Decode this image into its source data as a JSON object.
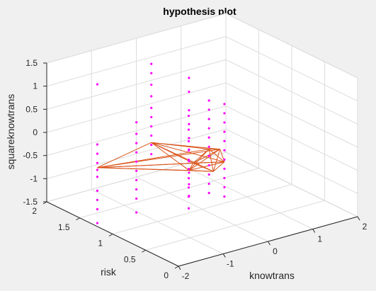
{
  "chart_data": {
    "type": "scatter",
    "title": "hypothesis plot",
    "xlabel": "knowtrans",
    "ylabel": "risk",
    "zlabel": "squareknowtrans",
    "xlim": [
      -2,
      2
    ],
    "ylim": [
      0,
      2
    ],
    "zlim": [
      -1.5,
      1.5
    ],
    "xticks": [
      "-2",
      "-1",
      "0",
      "1",
      "2"
    ],
    "yticks": [
      "0",
      "0.5",
      "1",
      "1.5",
      "2"
    ],
    "zticks": [
      "-1.5",
      "-1",
      "-0.5",
      "0",
      "0.5",
      "1",
      "1.5"
    ],
    "grid": true,
    "legend": "none",
    "colors": {
      "points": "#ff00ff",
      "lines": "#d95319",
      "background": "#f0f0f0",
      "axes": "#ffffff",
      "grid": "#dcdcdc"
    },
    "series": [
      {
        "kind": "points",
        "groups": [
          {
            "x": -1.9,
            "y": 1.3,
            "z": [
              1.5,
              0.2,
              0.0,
              -0.2,
              -0.35,
              -0.5,
              -0.8,
              -1.0,
              -1.2,
              -1.5
            ]
          },
          {
            "x": -1.1,
            "y": 1.25,
            "z": [
              0.5,
              0.25,
              0.05,
              -0.15,
              -0.35,
              -0.55,
              -0.75,
              -0.95,
              -1.15,
              -1.45
            ]
          },
          {
            "x": -0.4,
            "y": 1.5,
            "z": [
              1.4,
              1.2,
              0.95,
              0.7,
              0.45,
              0.25,
              0.05,
              -0.15,
              -0.35,
              -0.55
            ]
          },
          {
            "x": -0.3,
            "y": 1.0,
            "z": [
              0.6,
              0.3,
              0.05,
              -0.15,
              -0.35,
              -0.55,
              -0.75,
              -0.95,
              -1.15,
              -1.4
            ]
          },
          {
            "x": 0.0,
            "y": 1.2,
            "z": [
              1.2,
              0.9,
              0.5,
              0.2,
              -0.1,
              -0.35,
              -0.6,
              -0.85,
              -1.1,
              -1.35
            ]
          },
          {
            "x": 0.3,
            "y": 1.1,
            "z": [
              0.7,
              0.5,
              0.3,
              0.1,
              -0.1,
              -0.3,
              -0.5,
              -0.7,
              -0.9,
              -1.1,
              -1.3
            ]
          },
          {
            "x": 0.35,
            "y": 0.9,
            "z": [
              0.75,
              0.55,
              0.35,
              0.15,
              -0.05,
              -0.25,
              -0.45,
              -0.65,
              -0.85,
              -1.05,
              -1.25
            ]
          }
        ]
      },
      {
        "kind": "lines",
        "vertices": [
          [
            -1.9,
            1.3,
            -0.3
          ],
          [
            -0.4,
            1.5,
            -0.3
          ],
          [
            0.3,
            1.1,
            -0.35
          ],
          [
            -0.2,
            1.0,
            -0.45
          ],
          [
            0.25,
            0.9,
            -0.2
          ],
          [
            0.0,
            1.2,
            -0.8
          ],
          [
            0.25,
            1.0,
            -0.75
          ],
          [
            0.35,
            0.9,
            -0.5
          ]
        ],
        "edges": [
          [
            0,
            1
          ],
          [
            0,
            2
          ],
          [
            0,
            3
          ],
          [
            0,
            4
          ],
          [
            0,
            5
          ],
          [
            0,
            6
          ],
          [
            0,
            7
          ],
          [
            1,
            2
          ],
          [
            1,
            3
          ],
          [
            1,
            4
          ],
          [
            1,
            5
          ],
          [
            1,
            6
          ],
          [
            1,
            7
          ],
          [
            2,
            3
          ],
          [
            2,
            4
          ],
          [
            2,
            5
          ],
          [
            2,
            6
          ],
          [
            2,
            7
          ],
          [
            3,
            4
          ],
          [
            3,
            5
          ],
          [
            3,
            6
          ],
          [
            3,
            7
          ],
          [
            4,
            5
          ],
          [
            4,
            6
          ],
          [
            4,
            7
          ],
          [
            5,
            6
          ],
          [
            5,
            7
          ],
          [
            6,
            7
          ]
        ]
      }
    ]
  }
}
